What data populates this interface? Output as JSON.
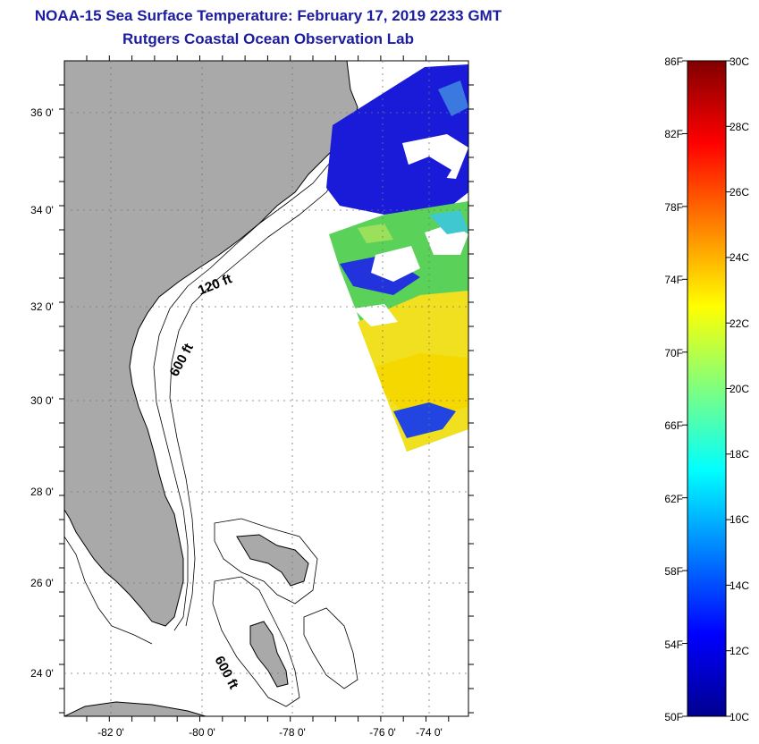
{
  "header": {
    "title": "NOAA-15 Sea Surface Temperature:  February 17, 2019 2233 GMT",
    "subtitle": "Rutgers Coastal Ocean Observation Lab"
  },
  "map": {
    "lat_ticks": [
      "36 0'",
      "34 0'",
      "32 0'",
      "30 0'",
      "28 0'",
      "26 0'",
      "24 0'"
    ],
    "lon_ticks": [
      "-82 0'",
      "-80 0'",
      "-78 0'",
      "-76 0'",
      "-74 0'"
    ],
    "depth_labels": [
      "120 ft",
      "600 ft",
      "600 ft"
    ],
    "colors": {
      "land": "#a9a9a9",
      "water": "#ffffff",
      "grid": "#777777"
    }
  },
  "colorbar": {
    "f_labels": [
      "86F",
      "82F",
      "78F",
      "74F",
      "70F",
      "66F",
      "62F",
      "58F",
      "54F",
      "50F"
    ],
    "c_labels": [
      "30C",
      "28C",
      "26C",
      "24C",
      "22C",
      "20C",
      "18C",
      "16C",
      "14C",
      "12C",
      "10C"
    ]
  }
}
